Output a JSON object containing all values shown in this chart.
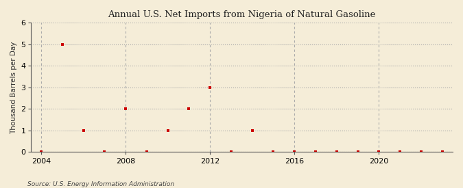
{
  "title": "Annual U.S. Net Imports from Nigeria of Natural Gasoline",
  "ylabel": "Thousand Barrels per Day",
  "source": "Source: U.S. Energy Information Administration",
  "background_color": "#f5edd8",
  "plot_background_color": "#f5edd8",
  "grid_color": "#aaaaaa",
  "marker_color": "#cc0000",
  "xlim": [
    2003.5,
    2023.5
  ],
  "ylim": [
    0,
    6
  ],
  "xticks": [
    2004,
    2008,
    2012,
    2016,
    2020
  ],
  "yticks": [
    0,
    1,
    2,
    3,
    4,
    5,
    6
  ],
  "years": [
    2004,
    2005,
    2006,
    2007,
    2008,
    2009,
    2010,
    2011,
    2012,
    2013,
    2014,
    2015,
    2016,
    2017,
    2018,
    2019,
    2020,
    2021,
    2022,
    2023
  ],
  "values": [
    0,
    5,
    1,
    0,
    2,
    0,
    1,
    2,
    3,
    0,
    1,
    0,
    0,
    0,
    0,
    0,
    0,
    0,
    0,
    0
  ]
}
